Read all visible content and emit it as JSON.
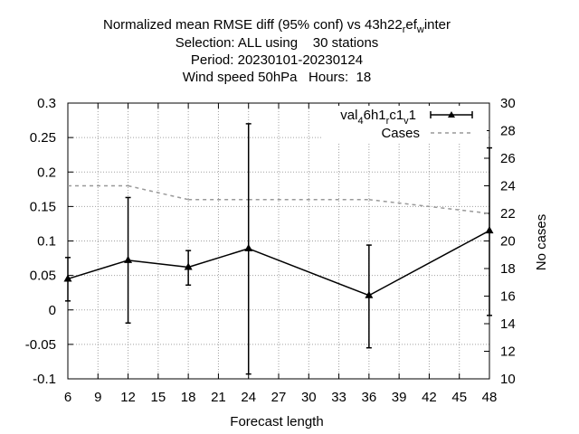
{
  "chart_data": {
    "type": "line",
    "title_lines": [
      "Normalized mean RMSE diff (95% conf) vs 43h22",
      "Selection: ALL using    30 stations",
      "Period: 20230101-20230124",
      "Wind speed 50hPa   Hours:  18"
    ],
    "title_sub": {
      "r": "r",
      "ef": "ef",
      "w": "w",
      "inter": "inter"
    },
    "xlabel": "Forecast length",
    "ylabel_right": "No cases",
    "x_ticks": [
      6,
      9,
      12,
      15,
      18,
      21,
      24,
      27,
      30,
      33,
      36,
      39,
      42,
      45,
      48
    ],
    "y_left_ticks": [
      "0.3",
      "0.25",
      "0.2",
      "0.15",
      "0.1",
      "0.05",
      "0",
      "-0.05",
      "-0.1"
    ],
    "y_right_ticks": [
      "30",
      "28",
      "26",
      "24",
      "22",
      "20",
      "18",
      "16",
      "14",
      "12",
      "10"
    ],
    "xlim": [
      6,
      48
    ],
    "ylim_left": [
      -0.1,
      0.3
    ],
    "ylim_right": [
      10,
      30
    ],
    "grid": true,
    "legend_position": "top-right",
    "legend": {
      "val_a": "val",
      "val_sub1": "4",
      "val_b": "6h1",
      "val_sub2": "r",
      "val_c": "c1",
      "val_sub3": "v",
      "val_d": "1",
      "cases": "Cases"
    },
    "series": [
      {
        "key": "val",
        "color": "#000000",
        "points": [
          {
            "x": 6,
            "y": 0.045,
            "lo": 0.013,
            "hi": 0.076
          },
          {
            "x": 12,
            "y": 0.072,
            "lo": -0.019,
            "hi": 0.163
          },
          {
            "x": 18,
            "y": 0.062,
            "lo": 0.036,
            "hi": 0.086
          },
          {
            "x": 24,
            "y": 0.089,
            "lo": -0.093,
            "hi": 0.27
          },
          {
            "x": 36,
            "y": 0.021,
            "lo": -0.055,
            "hi": 0.094
          },
          {
            "x": 48,
            "y": 0.115,
            "lo": -0.008,
            "hi": 0.235
          }
        ]
      },
      {
        "key": "cases",
        "color": "#999999",
        "dashed": true,
        "points": [
          {
            "x": 6,
            "y": 24
          },
          {
            "x": 12,
            "y": 24
          },
          {
            "x": 18,
            "y": 23
          },
          {
            "x": 24,
            "y": 23
          },
          {
            "x": 36,
            "y": 23
          },
          {
            "x": 48,
            "y": 22
          }
        ]
      }
    ]
  }
}
